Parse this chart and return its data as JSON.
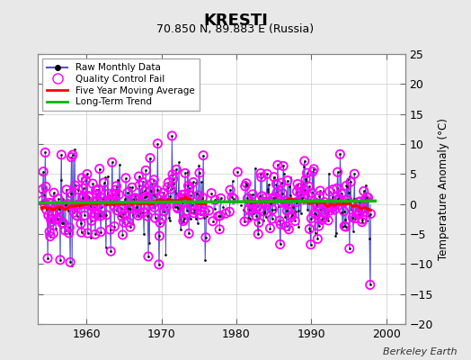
{
  "title": "KRESTI",
  "subtitle": "70.850 N, 89.883 E (Russia)",
  "ylabel": "Temperature Anomaly (°C)",
  "credit": "Berkeley Earth",
  "xlim": [
    1953.5,
    2002.5
  ],
  "ylim": [
    -20,
    25
  ],
  "yticks": [
    -20,
    -15,
    -10,
    -5,
    0,
    5,
    10,
    15,
    20,
    25
  ],
  "xticks": [
    1960,
    1970,
    1980,
    1990,
    2000
  ],
  "bg_color": "#e8e8e8",
  "plot_bg": "#ffffff",
  "raw_color": "#5555cc",
  "raw_line_color": "#8899ee",
  "dot_color": "#111111",
  "qc_color": "#ff00ff",
  "mavg_color": "#ff0000",
  "trend_color": "#00bb00",
  "legend_labels": [
    "Raw Monthly Data",
    "Quality Control Fail",
    "Five Year Moving Average",
    "Long-Term Trend"
  ],
  "seed": 42,
  "n_months": 528,
  "start_year": 1954.0
}
